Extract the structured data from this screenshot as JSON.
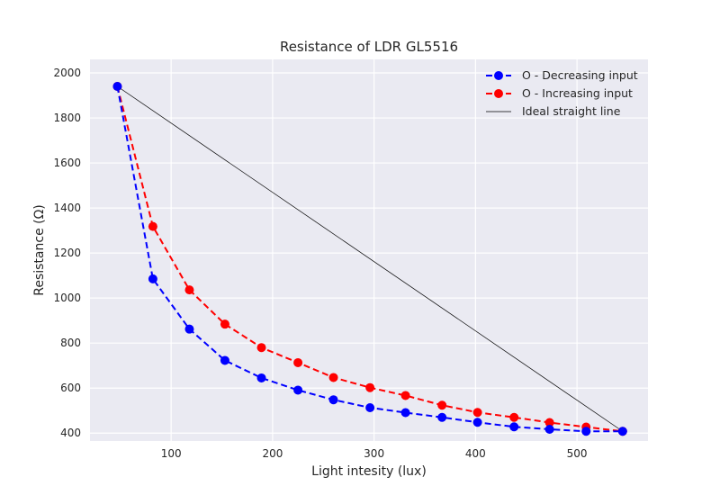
{
  "chart_data": {
    "type": "line",
    "title": "Resistance of LDR GL5516",
    "xlabel": "Light intesity (lux)",
    "ylabel": "Resistance (Ω)",
    "xlim": [
      20,
      570
    ],
    "ylim": [
      365,
      2060
    ],
    "xticks": [
      100,
      200,
      300,
      400,
      500
    ],
    "yticks": [
      400,
      600,
      800,
      1000,
      1200,
      1400,
      1600,
      1800,
      2000
    ],
    "grid": true,
    "legend_position": "top-right",
    "series": [
      {
        "name": "O - Decreasing input",
        "color": "#0000ff",
        "style": "dashed-with-markers",
        "x": [
          47,
          82,
          118,
          153,
          189,
          225,
          260,
          296,
          331,
          367,
          402,
          438,
          473,
          509,
          545
        ],
        "y": [
          1940,
          1085,
          862,
          723,
          645,
          591,
          548,
          513,
          491,
          470,
          448,
          428,
          417,
          408,
          408
        ]
      },
      {
        "name": "O - Increasing input",
        "color": "#ff0000",
        "style": "dashed-with-markers",
        "x": [
          47,
          82,
          118,
          153,
          189,
          225,
          260,
          296,
          331,
          367,
          402,
          438,
          473,
          509,
          545
        ],
        "y": [
          1940,
          1318,
          1036,
          884,
          780,
          713,
          647,
          602,
          567,
          524,
          492,
          470,
          447,
          427,
          408
        ]
      },
      {
        "name": "Ideal straight line",
        "color": "#000000",
        "style": "solid-thin",
        "x": [
          47,
          545
        ],
        "y": [
          1940,
          408
        ]
      }
    ]
  }
}
